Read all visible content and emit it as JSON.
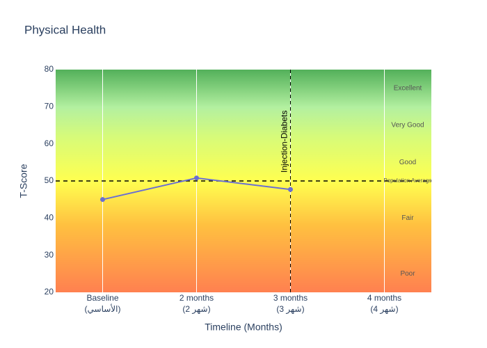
{
  "chart_data": {
    "type": "line",
    "title": "Physical Health",
    "x_label": "Timeline (Months)",
    "y_label": "T-Score",
    "categories": [
      [
        "Baseline",
        "(الأساسي)"
      ],
      [
        "2 months",
        "(شهر 2)"
      ],
      [
        "3 months",
        "(شهر 3)"
      ],
      [
        "4 months",
        "(شهر 4)"
      ]
    ],
    "series": [
      {
        "name": "T-Score",
        "color": "#6a6fd2",
        "values": [
          45,
          50.8,
          47.7,
          null
        ]
      }
    ],
    "ylim": [
      20,
      80
    ],
    "yticks": [
      20,
      30,
      40,
      50,
      60,
      70,
      80
    ],
    "xgrid": true,
    "reference_line": {
      "value": 50,
      "label": "Population Average"
    },
    "vertical_line": {
      "category_index": 2,
      "label": "Injection-Diabets"
    },
    "zones": [
      {
        "label": "Excellent",
        "y": 75
      },
      {
        "label": "Very Good",
        "y": 65
      },
      {
        "label": "Good",
        "y": 55
      },
      {
        "label": "Fair",
        "y": 40
      },
      {
        "label": "Poor",
        "y": 25
      }
    ]
  }
}
